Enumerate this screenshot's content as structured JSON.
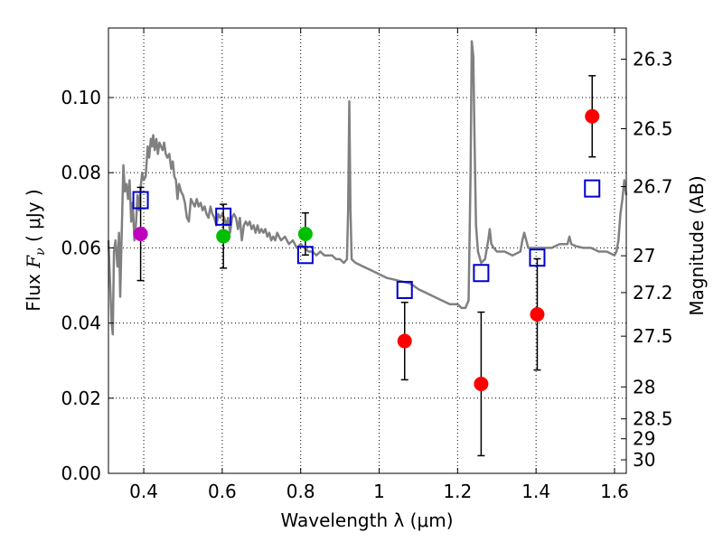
{
  "chart_data": {
    "type": "scatter",
    "xlabel": "Wavelength  λ (μm)",
    "ylabel_parts": [
      "Flux  ",
      "F",
      "ν",
      "  ( μJy )"
    ],
    "ylabel_right": "Magnitude (AB)",
    "xlim": [
      0.31,
      1.63
    ],
    "ylim": [
      0.0,
      0.1185
    ],
    "grid": true,
    "x_ticks": [
      0.4,
      0.6,
      0.8,
      1.0,
      1.2,
      1.4,
      1.6
    ],
    "x_tick_labels": [
      "0.4",
      "0.6",
      "0.8",
      "1",
      "1.2",
      "1.4",
      "1.6"
    ],
    "y_ticks": [
      0.0,
      0.02,
      0.04,
      0.06,
      0.08,
      0.1
    ],
    "y_tick_labels": [
      "0.00",
      "0.02",
      "0.04",
      "0.06",
      "0.08",
      "0.10"
    ],
    "magnitude_ticks": [
      {
        "label": "26.3",
        "flux": 0.1102
      },
      {
        "label": "26.5",
        "flux": 0.0917
      },
      {
        "label": "26.7",
        "flux": 0.0763
      },
      {
        "label": "27",
        "flux": 0.0579
      },
      {
        "label": "27.2",
        "flux": 0.0481
      },
      {
        "label": "27.5",
        "flux": 0.0365
      },
      {
        "label": "28",
        "flux": 0.023
      },
      {
        "label": "28.5",
        "flux": 0.0145
      },
      {
        "label": "29",
        "flux": 0.0092
      },
      {
        "label": "30",
        "flux": 0.0036
      }
    ],
    "series": [
      {
        "name": "model_spectrum",
        "kind": "line",
        "color": "#808080",
        "points": [
          [
            0.31,
            0.062
          ],
          [
            0.318,
            0.04
          ],
          [
            0.321,
            0.037
          ],
          [
            0.324,
            0.059
          ],
          [
            0.328,
            0.062
          ],
          [
            0.333,
            0.055
          ],
          [
            0.337,
            0.064
          ],
          [
            0.34,
            0.047
          ],
          [
            0.344,
            0.065
          ],
          [
            0.348,
            0.082
          ],
          [
            0.352,
            0.075
          ],
          [
            0.356,
            0.077
          ],
          [
            0.36,
            0.073
          ],
          [
            0.364,
            0.078
          ],
          [
            0.368,
            0.067
          ],
          [
            0.372,
            0.072
          ],
          [
            0.376,
            0.062
          ],
          [
            0.38,
            0.066
          ],
          [
            0.384,
            0.074
          ],
          [
            0.388,
            0.07
          ],
          [
            0.392,
            0.076
          ],
          [
            0.396,
            0.08
          ],
          [
            0.4,
            0.078
          ],
          [
            0.405,
            0.079
          ],
          [
            0.41,
            0.087
          ],
          [
            0.414,
            0.084
          ],
          [
            0.418,
            0.089
          ],
          [
            0.421,
            0.087
          ],
          [
            0.424,
            0.09
          ],
          [
            0.428,
            0.086
          ],
          [
            0.432,
            0.089
          ],
          [
            0.436,
            0.085
          ],
          [
            0.44,
            0.088
          ],
          [
            0.444,
            0.087
          ],
          [
            0.448,
            0.086
          ],
          [
            0.452,
            0.088
          ],
          [
            0.456,
            0.085
          ],
          [
            0.46,
            0.084
          ],
          [
            0.465,
            0.085
          ],
          [
            0.47,
            0.081
          ],
          [
            0.474,
            0.083
          ],
          [
            0.478,
            0.079
          ],
          [
            0.482,
            0.078
          ],
          [
            0.486,
            0.073
          ],
          [
            0.49,
            0.077
          ],
          [
            0.495,
            0.075
          ],
          [
            0.5,
            0.074
          ],
          [
            0.505,
            0.072
          ],
          [
            0.51,
            0.068
          ],
          [
            0.515,
            0.067
          ],
          [
            0.52,
            0.073
          ],
          [
            0.525,
            0.072
          ],
          [
            0.53,
            0.071
          ],
          [
            0.535,
            0.073
          ],
          [
            0.54,
            0.071
          ],
          [
            0.545,
            0.072
          ],
          [
            0.55,
            0.07
          ],
          [
            0.555,
            0.071
          ],
          [
            0.56,
            0.069
          ],
          [
            0.565,
            0.068
          ],
          [
            0.57,
            0.071
          ],
          [
            0.575,
            0.069
          ],
          [
            0.58,
            0.068
          ],
          [
            0.585,
            0.066
          ],
          [
            0.59,
            0.069
          ],
          [
            0.595,
            0.068
          ],
          [
            0.6,
            0.069
          ],
          [
            0.605,
            0.068
          ],
          [
            0.61,
            0.066
          ],
          [
            0.615,
            0.068
          ],
          [
            0.62,
            0.064
          ],
          [
            0.625,
            0.068
          ],
          [
            0.63,
            0.069
          ],
          [
            0.635,
            0.068
          ],
          [
            0.64,
            0.065
          ],
          [
            0.645,
            0.068
          ],
          [
            0.65,
            0.062
          ],
          [
            0.655,
            0.066
          ],
          [
            0.66,
            0.067
          ],
          [
            0.665,
            0.066
          ],
          [
            0.67,
            0.067
          ],
          [
            0.675,
            0.065
          ],
          [
            0.68,
            0.066
          ],
          [
            0.685,
            0.064
          ],
          [
            0.69,
            0.066
          ],
          [
            0.695,
            0.064
          ],
          [
            0.7,
            0.065
          ],
          [
            0.705,
            0.064
          ],
          [
            0.71,
            0.065
          ],
          [
            0.715,
            0.063
          ],
          [
            0.72,
            0.064
          ],
          [
            0.725,
            0.062
          ],
          [
            0.73,
            0.063
          ],
          [
            0.735,
            0.062
          ],
          [
            0.74,
            0.064
          ],
          [
            0.745,
            0.063
          ],
          [
            0.75,
            0.062
          ],
          [
            0.76,
            0.063
          ],
          [
            0.77,
            0.061
          ],
          [
            0.78,
            0.062
          ],
          [
            0.79,
            0.06
          ],
          [
            0.8,
            0.061
          ],
          [
            0.81,
            0.06
          ],
          [
            0.82,
            0.059
          ],
          [
            0.83,
            0.059
          ],
          [
            0.84,
            0.058
          ],
          [
            0.85,
            0.059
          ],
          [
            0.86,
            0.058
          ],
          [
            0.87,
            0.058
          ],
          [
            0.88,
            0.058
          ],
          [
            0.89,
            0.057
          ],
          [
            0.9,
            0.057
          ],
          [
            0.91,
            0.056
          ],
          [
            0.918,
            0.057
          ],
          [
            0.921,
            0.07
          ],
          [
            0.924,
            0.099
          ],
          [
            0.927,
            0.07
          ],
          [
            0.93,
            0.057
          ],
          [
            0.94,
            0.056
          ],
          [
            0.96,
            0.055
          ],
          [
            0.98,
            0.054
          ],
          [
            1.0,
            0.053
          ],
          [
            1.02,
            0.052
          ],
          [
            1.04,
            0.0515
          ],
          [
            1.06,
            0.051
          ],
          [
            1.08,
            0.0505
          ],
          [
            1.1,
            0.049
          ],
          [
            1.12,
            0.048
          ],
          [
            1.14,
            0.047
          ],
          [
            1.16,
            0.046
          ],
          [
            1.18,
            0.045
          ],
          [
            1.2,
            0.045
          ],
          [
            1.21,
            0.044
          ],
          [
            1.22,
            0.044
          ],
          [
            1.228,
            0.046
          ],
          [
            1.233,
            0.08
          ],
          [
            1.236,
            0.115
          ],
          [
            1.24,
            0.111
          ],
          [
            1.243,
            0.09
          ],
          [
            1.247,
            0.066
          ],
          [
            1.252,
            0.059
          ],
          [
            1.26,
            0.056
          ],
          [
            1.27,
            0.057
          ],
          [
            1.278,
            0.062
          ],
          [
            1.282,
            0.065
          ],
          [
            1.286,
            0.061
          ],
          [
            1.292,
            0.06
          ],
          [
            1.3,
            0.059
          ],
          [
            1.32,
            0.059
          ],
          [
            1.34,
            0.058
          ],
          [
            1.36,
            0.059
          ],
          [
            1.365,
            0.062
          ],
          [
            1.37,
            0.064
          ],
          [
            1.375,
            0.062
          ],
          [
            1.38,
            0.06
          ],
          [
            1.4,
            0.06
          ],
          [
            1.42,
            0.06
          ],
          [
            1.44,
            0.06
          ],
          [
            1.46,
            0.061
          ],
          [
            1.48,
            0.061
          ],
          [
            1.485,
            0.063
          ],
          [
            1.49,
            0.061
          ],
          [
            1.5,
            0.0605
          ],
          [
            1.52,
            0.06
          ],
          [
            1.54,
            0.06
          ],
          [
            1.56,
            0.059
          ],
          [
            1.58,
            0.059
          ],
          [
            1.6,
            0.058
          ],
          [
            1.605,
            0.059
          ],
          [
            1.61,
            0.062
          ],
          [
            1.615,
            0.069
          ],
          [
            1.62,
            0.073
          ],
          [
            1.625,
            0.078
          ],
          [
            1.63,
            0.074
          ]
        ]
      },
      {
        "name": "model_photometry",
        "kind": "open_square",
        "color": "#0000cc",
        "points": [
          {
            "x": 0.392,
            "y": 0.0727
          },
          {
            "x": 0.603,
            "y": 0.0683
          },
          {
            "x": 0.812,
            "y": 0.0581
          },
          {
            "x": 1.065,
            "y": 0.0488
          },
          {
            "x": 1.26,
            "y": 0.0533
          },
          {
            "x": 1.403,
            "y": 0.0574
          },
          {
            "x": 1.543,
            "y": 0.0758
          }
        ]
      },
      {
        "name": "observed_flux",
        "kind": "filled_circle",
        "points": [
          {
            "x": 0.392,
            "y": 0.0637,
            "err": 0.0124,
            "color": "#bf00bf"
          },
          {
            "x": 0.603,
            "y": 0.0631,
            "err": 0.0085,
            "color": "#00bf00"
          },
          {
            "x": 0.812,
            "y": 0.0637,
            "err": 0.0056,
            "color": "#00bf00"
          },
          {
            "x": 1.065,
            "y": 0.0352,
            "err": 0.0103,
            "color": "#ff0000"
          },
          {
            "x": 1.26,
            "y": 0.0238,
            "err": 0.0191,
            "color": "#ff0000"
          },
          {
            "x": 1.403,
            "y": 0.0423,
            "err": 0.0148,
            "color": "#ff0000"
          },
          {
            "x": 1.543,
            "y": 0.095,
            "err": 0.0108,
            "color": "#ff0000"
          }
        ]
      }
    ]
  }
}
